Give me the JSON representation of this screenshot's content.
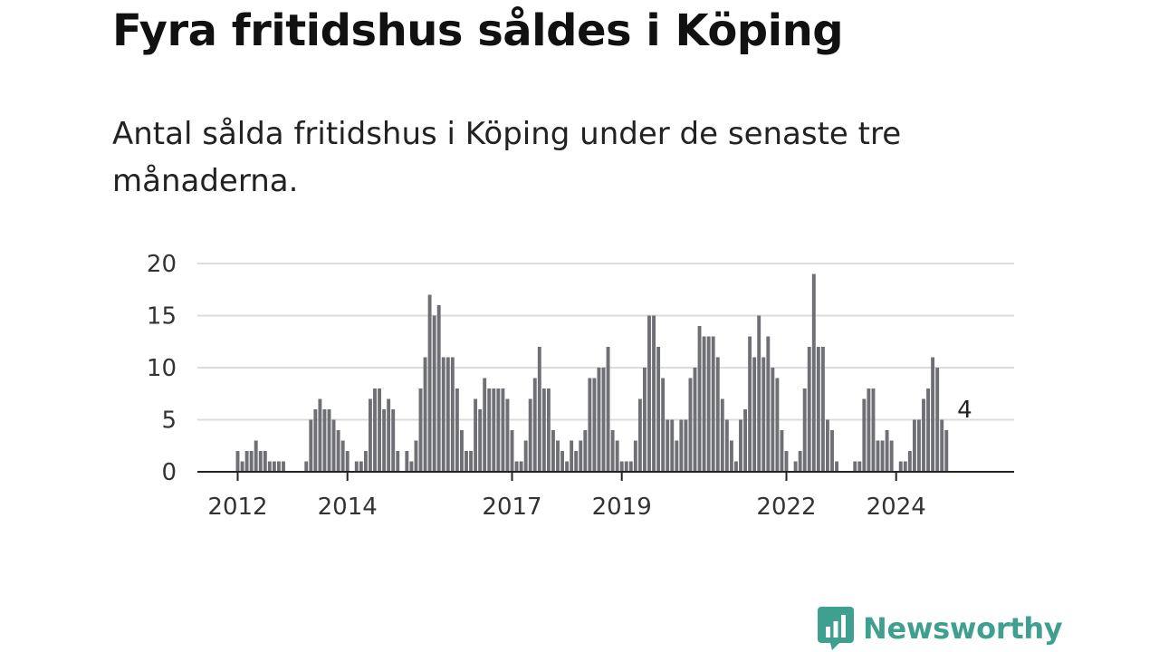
{
  "header": {
    "title": "Fyra fritidshus såldes i Köping",
    "subtitle": "Antal sålda fritidshus i Köping under de senaste tre månaderna."
  },
  "chart_data": {
    "type": "bar",
    "title": "Fyra fritidshus såldes i Köping",
    "subtitle": "Antal sålda fritidshus i Köping under de senaste tre månaderna.",
    "xlabel": "",
    "ylabel": "",
    "ylim": [
      0,
      20
    ],
    "yticks": [
      0,
      5,
      10,
      15,
      20
    ],
    "grid": true,
    "x_tick_labels": [
      "2012",
      "2014",
      "2017",
      "2019",
      "2022",
      "2024"
    ],
    "values": [
      2,
      1,
      2,
      2,
      3,
      2,
      2,
      1,
      1,
      1,
      1,
      null,
      null,
      null,
      null,
      1,
      5,
      6,
      7,
      6,
      6,
      5,
      4,
      3,
      2,
      null,
      1,
      1,
      2,
      7,
      8,
      8,
      6,
      7,
      6,
      2,
      null,
      2,
      1,
      3,
      8,
      11,
      17,
      15,
      16,
      11,
      11,
      11,
      8,
      4,
      2,
      2,
      7,
      6,
      9,
      8,
      8,
      8,
      8,
      7,
      4,
      1,
      1,
      3,
      7,
      9,
      12,
      8,
      8,
      4,
      3,
      2,
      1,
      3,
      2,
      3,
      4,
      9,
      9,
      10,
      10,
      12,
      4,
      3,
      1,
      1,
      1,
      3,
      7,
      10,
      15,
      15,
      12,
      9,
      5,
      5,
      3,
      5,
      5,
      9,
      10,
      14,
      13,
      13,
      13,
      11,
      7,
      5,
      3,
      1,
      5,
      6,
      13,
      11,
      15,
      11,
      13,
      10,
      9,
      4,
      2,
      null,
      1,
      2,
      8,
      12,
      19,
      12,
      12,
      5,
      4,
      1,
      null,
      null,
      null,
      1,
      1,
      7,
      8,
      8,
      3,
      3,
      4,
      3,
      null,
      1,
      1,
      2,
      5,
      5,
      7,
      8,
      11,
      10,
      5,
      4
    ],
    "highlight": {
      "index": 159,
      "value": 4,
      "label": "4",
      "color": "#1b9e8f"
    },
    "bar_color": "#6f6f76"
  },
  "logo": {
    "text": "Newsworthy",
    "icon": "newsworthy-bar-icon",
    "color": "#3fa08f"
  }
}
